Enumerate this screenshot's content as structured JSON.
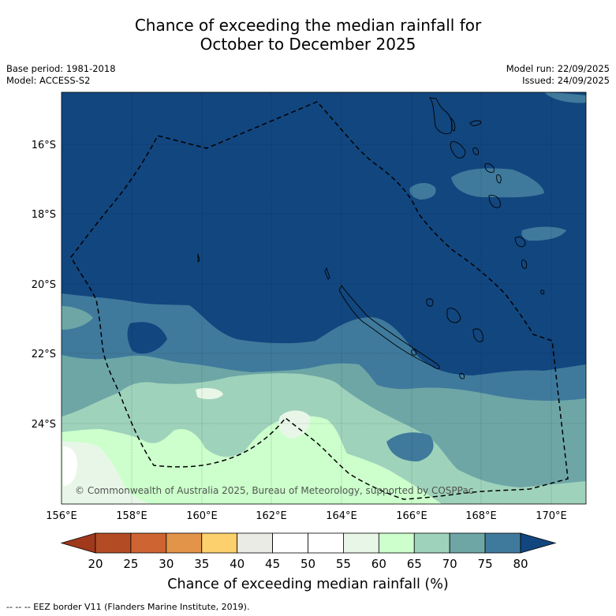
{
  "header": {
    "title_line1": "Chance of exceeding the median rainfall for",
    "title_line2": "October to December 2025",
    "base_period": "Base period: 1981-2018",
    "model": "Model: ACCESS-S2",
    "model_run": "Model run: 22/09/2025",
    "issued": "Issued: 24/09/2025"
  },
  "map": {
    "copyright": "© Commonwealth of Australia 2025, Bureau of Meteorology, supported by COSPPac",
    "lat_labels": [
      "16°S",
      "18°S",
      "20°S",
      "22°S",
      "24°S"
    ],
    "lon_labels": [
      "156°E",
      "158°E",
      "160°E",
      "162°E",
      "164°E",
      "166°E",
      "168°E",
      "170°E"
    ]
  },
  "legend": {
    "title": "Chance of exceeding median rainfall (%)",
    "ticks": [
      "20",
      "25",
      "30",
      "35",
      "40",
      "45",
      "50",
      "55",
      "60",
      "65",
      "70",
      "75",
      "80"
    ],
    "colors": [
      "#a0381c",
      "#b34b24",
      "#cd6432",
      "#e29448",
      "#fcd06c",
      "#ebebe6",
      "#ffffff",
      "#ffffff",
      "#e8f6e8",
      "#ccffcc",
      "#9fd2bb",
      "#6ea6a6",
      "#3f7a9c",
      "#12467f"
    ],
    "footnote": "--  --  -- EEZ border V11 (Flanders Marine Institute, 2019)."
  },
  "colors": {
    "c80": "#12467f",
    "c75": "#3f7a9c",
    "c70": "#6ea6a6",
    "c65": "#9fd2bb",
    "c60": "#ccffcc",
    "c55": "#e8f6e8",
    "c50": "#ffffff"
  }
}
